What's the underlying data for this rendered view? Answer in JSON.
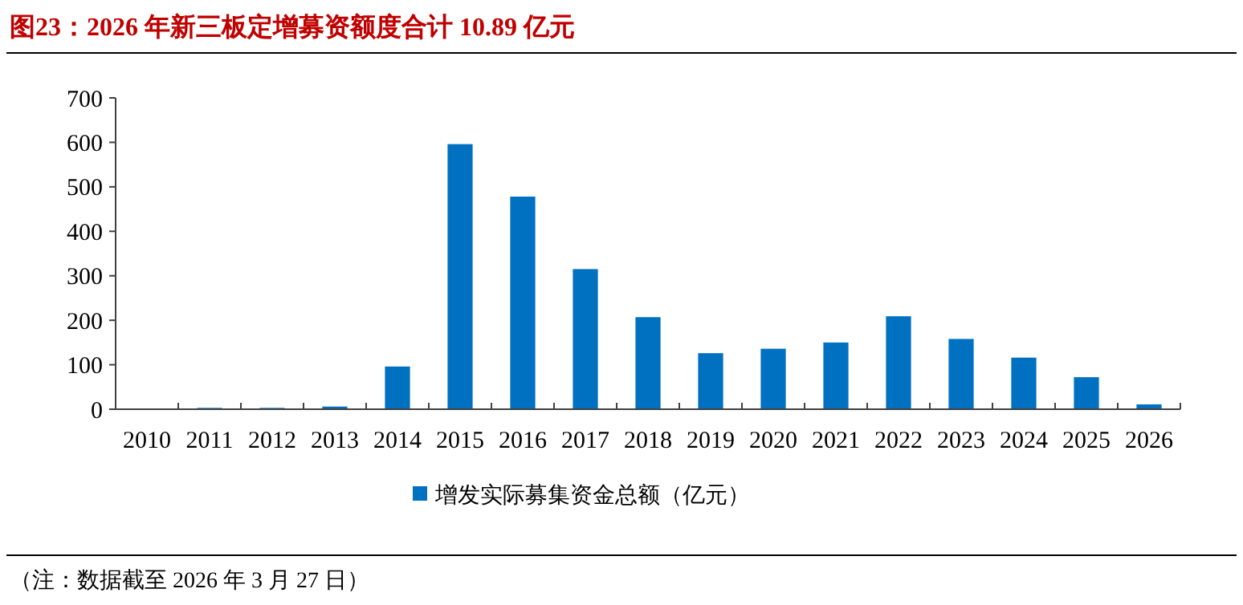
{
  "chart_data": {
    "type": "bar",
    "title": "图23：2026 年新三板定增募资额度合计 10.89 亿元",
    "categories": [
      "2010",
      "2011",
      "2012",
      "2013",
      "2014",
      "2015",
      "2016",
      "2017",
      "2018",
      "2019",
      "2020",
      "2021",
      "2022",
      "2023",
      "2024",
      "2025",
      "2026"
    ],
    "series": [
      {
        "name": "增发实际募集资金总额（亿元）",
        "color": "#0070c0",
        "values": [
          0,
          3,
          3,
          6,
          96,
          596,
          478,
          315,
          207,
          126,
          136,
          150,
          209,
          158,
          116,
          72,
          10.89
        ]
      }
    ],
    "ylim": [
      0,
      700
    ],
    "yticks": [
      0,
      100,
      200,
      300,
      400,
      500,
      600,
      700
    ],
    "grid": false,
    "legend": "bottom",
    "annotations": [
      "（注：数据截至 2026 年 3 月 27 日）"
    ]
  }
}
